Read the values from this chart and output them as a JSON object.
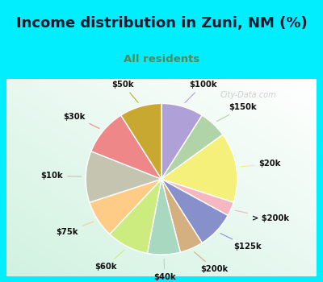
{
  "title": "Income distribution in Zuni, NM (%)",
  "subtitle": "All residents",
  "title_color": "#1a1a2e",
  "subtitle_color": "#558855",
  "bg_cyan": "#00eeff",
  "labels": [
    "$100k",
    "$150k",
    "$20k",
    "> $200k",
    "$125k",
    "$200k",
    "$40k",
    "$60k",
    "$75k",
    "$10k",
    "$30k",
    "$50k"
  ],
  "sizes": [
    9,
    6,
    15,
    3,
    8,
    5,
    7,
    9,
    8,
    11,
    10,
    9
  ],
  "colors": [
    "#b0a0d8",
    "#b0d4a8",
    "#f5f07a",
    "#f5b8c0",
    "#8890cc",
    "#d4b080",
    "#a8d8c0",
    "#ccec80",
    "#ffcc88",
    "#c4c4b0",
    "#ee8888",
    "#c8a830"
  ],
  "wedge_edge_color": "#ffffff",
  "label_fontsize": 7.2,
  "label_color": "#111111",
  "title_fontsize": 13,
  "subtitle_fontsize": 9.5,
  "watermark": "City-Data.com",
  "watermark_color": "#aaaaaa"
}
